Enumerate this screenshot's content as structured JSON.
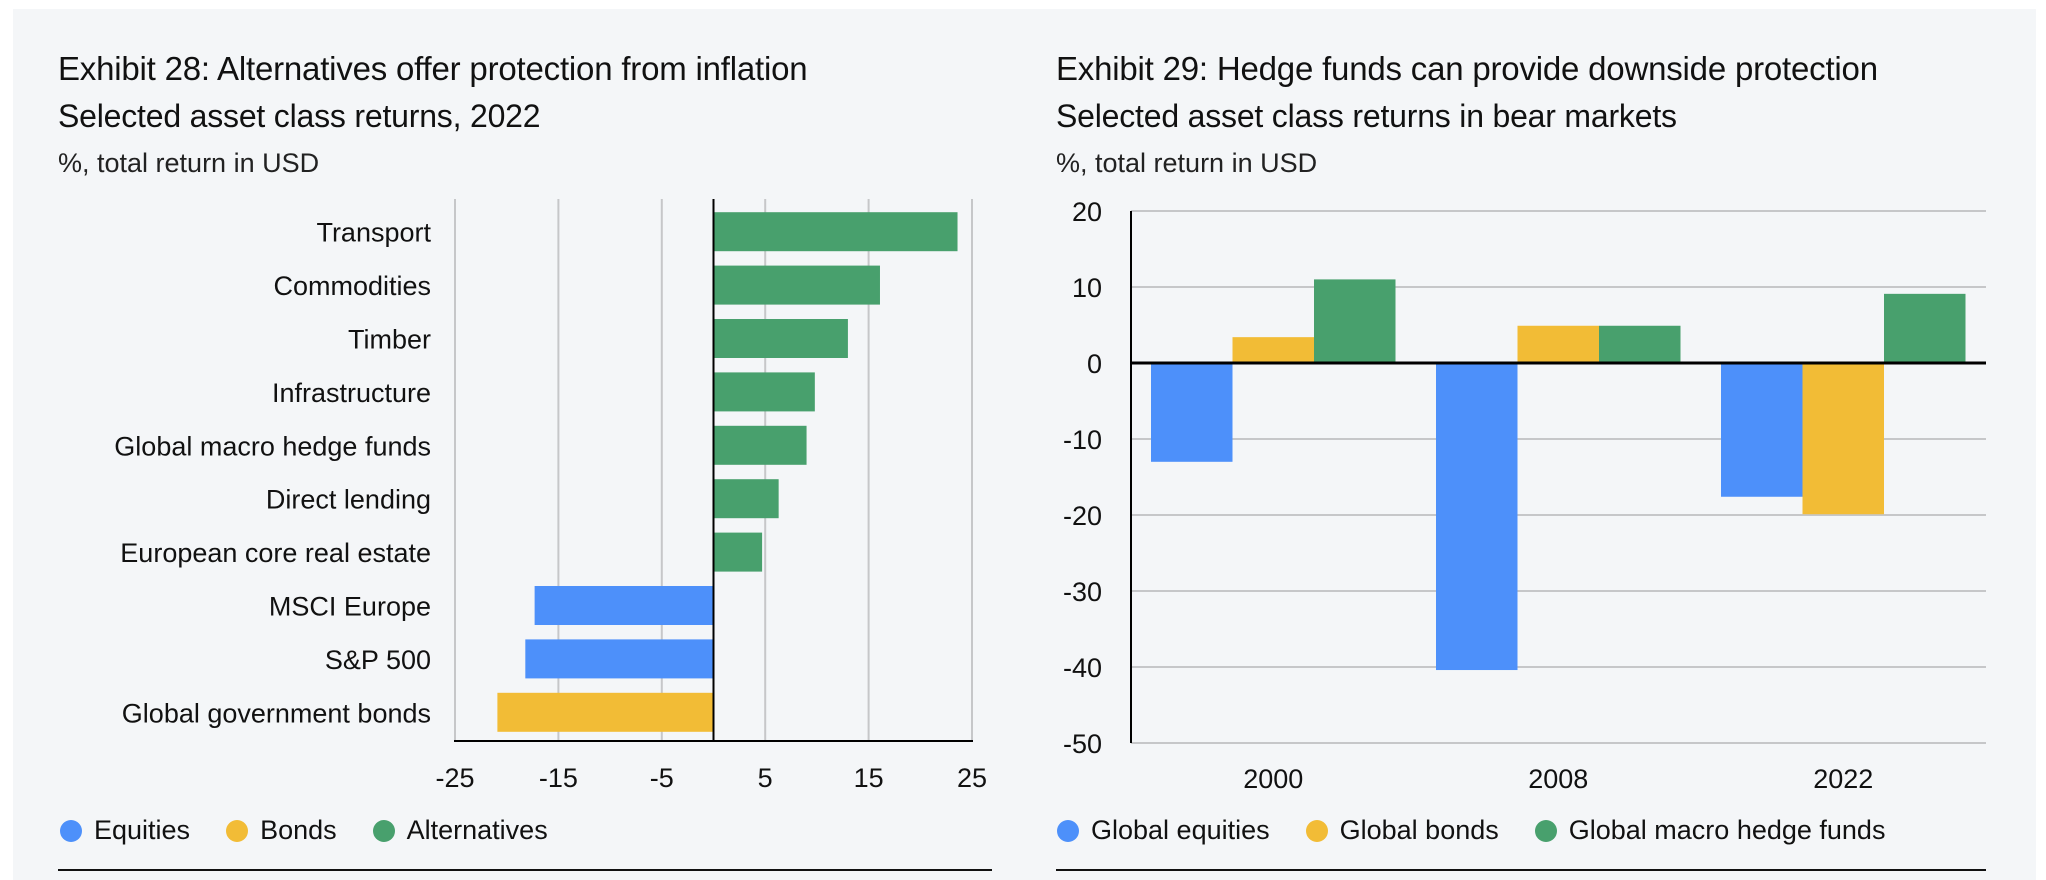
{
  "colors": {
    "equities": "#4d90fa",
    "bonds": "#f2bc36",
    "alternatives": "#48a06d",
    "grid": "#c6c7c9",
    "axis": "#000000"
  },
  "left": {
    "title": "Exhibit 28: Alternatives offer protection from inflation",
    "subtitle": "Selected asset class returns, 2022",
    "unit": "%, total return in USD",
    "legend": [
      {
        "label": "Equities",
        "color_key": "equities"
      },
      {
        "label": "Bonds",
        "color_key": "bonds"
      },
      {
        "label": "Alternatives",
        "color_key": "alternatives"
      }
    ]
  },
  "right": {
    "title": "Exhibit 29: Hedge funds can provide downside protection",
    "subtitle": "Selected asset class returns in bear markets",
    "unit": "%, total return in USD",
    "legend": [
      {
        "label": "Global equities",
        "color_key": "equities"
      },
      {
        "label": "Global bonds",
        "color_key": "bonds"
      },
      {
        "label": "Global macro hedge funds",
        "color_key": "alternatives"
      }
    ]
  },
  "chart_data": [
    {
      "type": "bar",
      "orientation": "horizontal",
      "title": "Exhibit 28: Alternatives offer protection from inflation",
      "subtitle": "Selected asset class returns, 2022",
      "xlabel": "%, total return in USD",
      "ylabel": "",
      "xlim": [
        -25,
        25
      ],
      "xticks": [
        -25,
        -15,
        -5,
        5,
        15,
        25
      ],
      "grid": true,
      "legend_position": "bottom-left",
      "categories": [
        "Transport",
        "Commodities",
        "Timber",
        "Infrastructure",
        "Global macro hedge funds",
        "Direct lending",
        "European core real estate",
        "MSCI Europe",
        "S&P 500",
        "Global government bonds"
      ],
      "values": [
        23.6,
        16.1,
        13.0,
        9.8,
        9.0,
        6.3,
        4.7,
        -17.3,
        -18.2,
        -20.9
      ],
      "groups": [
        "Alternatives",
        "Alternatives",
        "Alternatives",
        "Alternatives",
        "Alternatives",
        "Alternatives",
        "Alternatives",
        "Equities",
        "Equities",
        "Bonds"
      ]
    },
    {
      "type": "bar",
      "orientation": "vertical",
      "title": "Exhibit 29: Hedge funds can provide downside protection",
      "subtitle": "Selected asset class returns in bear markets",
      "ylabel": "%, total return in USD",
      "xlabel": "",
      "ylim": [
        -50,
        20
      ],
      "yticks": [
        20,
        10,
        0,
        -10,
        -20,
        -30,
        -40,
        -50
      ],
      "grid": true,
      "legend_position": "bottom-left",
      "categories": [
        "2000",
        "2008",
        "2022"
      ],
      "series": [
        {
          "name": "Global equities",
          "values": [
            -13.0,
            -40.4,
            -17.6
          ]
        },
        {
          "name": "Global bonds",
          "values": [
            3.4,
            4.9,
            -19.9
          ]
        },
        {
          "name": "Global macro hedge funds",
          "values": [
            11.0,
            4.9,
            9.1
          ]
        }
      ]
    }
  ]
}
